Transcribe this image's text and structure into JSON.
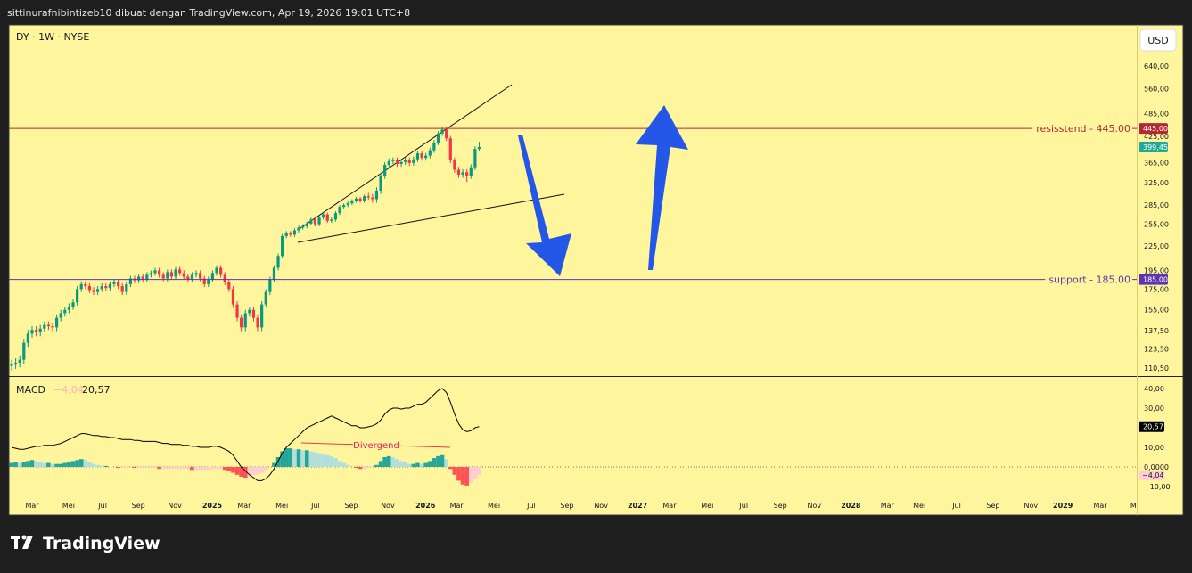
{
  "header": {
    "caption": "sittinurafnibintizeb10 dibuat dengan TradingView.com, Apr 19, 2026 19:01 UTC+8"
  },
  "footer": {
    "brand": "TradingView"
  },
  "currency_button": "USD",
  "chart_data": [
    {
      "type": "candlestick",
      "title": "DY · 1W · NYSE",
      "x": [
        0,
        1,
        2,
        3,
        4,
        5,
        6,
        7,
        8,
        9,
        10,
        11,
        12,
        13,
        14,
        15,
        16,
        17,
        18,
        19,
        20,
        21,
        22,
        23,
        24,
        25,
        26,
        27,
        28,
        29,
        30,
        31,
        32,
        33,
        34,
        35,
        36,
        37,
        38,
        39,
        40,
        41,
        42,
        43,
        44,
        45,
        46,
        47,
        48,
        49,
        50,
        51,
        52,
        53,
        54,
        55,
        56,
        57,
        58,
        59,
        60,
        61,
        62,
        63,
        64,
        65,
        66,
        67,
        68,
        69,
        70,
        71,
        72,
        73,
        74,
        75,
        76,
        77,
        78,
        79,
        80,
        81,
        82,
        83,
        84,
        85,
        86,
        87,
        88,
        89,
        90,
        91,
        92,
        93,
        94,
        95,
        96,
        97,
        98,
        99,
        100,
        101,
        102,
        103,
        104,
        105,
        106,
        107,
        108,
        109,
        110,
        111,
        112,
        113,
        114
      ],
      "open": [
        112,
        113,
        114,
        116,
        128,
        135,
        138,
        136,
        139,
        142,
        141,
        140,
        148,
        152,
        155,
        158,
        162,
        175,
        180,
        178,
        174,
        172,
        175,
        178,
        176,
        180,
        182,
        178,
        172,
        180,
        186,
        184,
        188,
        185,
        190,
        192,
        195,
        190,
        186,
        193,
        188,
        196,
        192,
        188,
        185,
        190,
        192,
        186,
        180,
        185,
        192,
        198,
        190,
        182,
        175,
        160,
        148,
        140,
        152,
        155,
        148,
        140,
        160,
        172,
        185,
        198,
        212,
        238,
        242,
        240,
        246,
        250,
        252,
        256,
        262,
        255,
        265,
        270,
        260,
        262,
        272,
        282,
        285,
        288,
        292,
        296,
        292,
        300,
        298,
        295,
        310,
        338,
        360,
        368,
        370,
        362,
        366,
        370,
        364,
        372,
        385,
        375,
        380,
        392,
        410,
        432,
        442,
        420,
        370,
        350,
        340,
        345,
        338,
        355,
        395
      ],
      "high": [
        116,
        117,
        119,
        131,
        138,
        141,
        141,
        142,
        145,
        145,
        144,
        151,
        155,
        158,
        161,
        165,
        178,
        183,
        183,
        181,
        177,
        178,
        181,
        181,
        183,
        185,
        185,
        181,
        183,
        189,
        189,
        191,
        191,
        193,
        195,
        198,
        198,
        193,
        196,
        196,
        199,
        199,
        195,
        191,
        193,
        195,
        195,
        189,
        188,
        195,
        201,
        201,
        193,
        185,
        178,
        163,
        151,
        155,
        158,
        158,
        151,
        163,
        175,
        188,
        201,
        215,
        241,
        245,
        245,
        249,
        253,
        255,
        259,
        265,
        265,
        268,
        273,
        273,
        265,
        275,
        285,
        288,
        291,
        295,
        299,
        299,
        303,
        306,
        304,
        316,
        344,
        366,
        374,
        376,
        376,
        372,
        376,
        376,
        378,
        391,
        391,
        386,
        398,
        416,
        438,
        450,
        448,
        426,
        376,
        356,
        351,
        351,
        361,
        401,
        412
      ],
      "low": [
        109,
        110,
        111,
        113,
        125,
        132,
        133,
        133,
        136,
        138,
        137,
        137,
        145,
        149,
        152,
        155,
        159,
        172,
        175,
        171,
        169,
        169,
        172,
        173,
        173,
        177,
        175,
        169,
        169,
        177,
        181,
        181,
        182,
        182,
        187,
        189,
        187,
        183,
        183,
        185,
        185,
        189,
        185,
        182,
        182,
        187,
        183,
        177,
        177,
        182,
        189,
        187,
        179,
        172,
        157,
        145,
        137,
        137,
        149,
        145,
        137,
        137,
        157,
        169,
        182,
        195,
        209,
        235,
        237,
        237,
        243,
        247,
        249,
        253,
        252,
        252,
        262,
        257,
        257,
        259,
        269,
        279,
        282,
        285,
        289,
        289,
        289,
        294,
        289,
        289,
        304,
        332,
        354,
        362,
        356,
        356,
        360,
        358,
        358,
        366,
        369,
        369,
        374,
        386,
        404,
        426,
        414,
        364,
        344,
        334,
        334,
        326,
        332,
        349,
        390
      ],
      "close": [
        113,
        114,
        116,
        128,
        135,
        138,
        136,
        139,
        142,
        141,
        140,
        148,
        152,
        155,
        158,
        162,
        175,
        180,
        178,
        174,
        172,
        175,
        178,
        176,
        180,
        182,
        178,
        172,
        180,
        186,
        184,
        188,
        185,
        190,
        192,
        195,
        190,
        186,
        193,
        188,
        196,
        192,
        188,
        185,
        190,
        192,
        186,
        180,
        185,
        192,
        198,
        190,
        182,
        175,
        160,
        148,
        140,
        152,
        155,
        148,
        140,
        160,
        172,
        185,
        198,
        212,
        238,
        242,
        240,
        246,
        250,
        252,
        256,
        262,
        255,
        265,
        270,
        260,
        262,
        272,
        282,
        285,
        288,
        292,
        296,
        292,
        300,
        298,
        295,
        310,
        338,
        360,
        368,
        370,
        362,
        366,
        370,
        364,
        372,
        385,
        375,
        380,
        392,
        410,
        432,
        442,
        420,
        370,
        350,
        340,
        345,
        338,
        355,
        395,
        399.45
      ],
      "up_color": "#089981",
      "down_color": "#f23645",
      "log_scale": true,
      "ylim": [
        105.5,
        812
      ],
      "yticks": [
        {
          "value": 640,
          "label": "640,00"
        },
        {
          "value": 560,
          "label": "560,00"
        },
        {
          "value": 485,
          "label": "485,00"
        },
        {
          "value": 425,
          "label": "425,00"
        },
        {
          "value": 365,
          "label": "365,00"
        },
        {
          "value": 325,
          "label": "325,00"
        },
        {
          "value": 285,
          "label": "285,00"
        },
        {
          "value": 255,
          "label": "255,00"
        },
        {
          "value": 225,
          "label": "225,00"
        },
        {
          "value": 195,
          "label": "195,00"
        },
        {
          "value": 175,
          "label": "175,00"
        },
        {
          "value": 155,
          "label": "155,00"
        },
        {
          "value": 137.5,
          "label": "137,50"
        },
        {
          "value": 123.5,
          "label": "123,50"
        },
        {
          "value": 110.5,
          "label": "110,50"
        }
      ],
      "xlim": [
        -0.65,
        274.3
      ],
      "xticks": [
        {
          "value": 5,
          "label": "Mar"
        },
        {
          "value": 13.9,
          "label": "Mei"
        },
        {
          "value": 22.2,
          "label": "Jul"
        },
        {
          "value": 30.9,
          "label": "Sep"
        },
        {
          "value": 39.8,
          "label": "Nov"
        },
        {
          "value": 48.9,
          "label": "2025"
        },
        {
          "value": 56.7,
          "label": "Mar"
        },
        {
          "value": 65.9,
          "label": "Mei"
        },
        {
          "value": 74.1,
          "label": "Jul"
        },
        {
          "value": 82.8,
          "label": "Sep"
        },
        {
          "value": 91.7,
          "label": "Nov"
        },
        {
          "value": 100.9,
          "label": "2026"
        },
        {
          "value": 108.5,
          "label": "Mar"
        },
        {
          "value": 117.6,
          "label": "Mei"
        },
        {
          "value": 126.7,
          "label": "Jul"
        },
        {
          "value": 135.4,
          "label": "Sep"
        },
        {
          "value": 143.7,
          "label": "Nov"
        },
        {
          "value": 152.6,
          "label": "2027"
        },
        {
          "value": 160.4,
          "label": "Mar"
        },
        {
          "value": 169.6,
          "label": "Mei"
        },
        {
          "value": 178.5,
          "label": "Jul"
        },
        {
          "value": 187.4,
          "label": "Sep"
        },
        {
          "value": 195.7,
          "label": "Nov"
        },
        {
          "value": 204.6,
          "label": "2028"
        },
        {
          "value": 213.5,
          "label": "Mar"
        },
        {
          "value": 221.3,
          "label": "Mei"
        },
        {
          "value": 230.4,
          "label": "Jul"
        },
        {
          "value": 239.3,
          "label": "Sep"
        },
        {
          "value": 248.5,
          "label": "Nov"
        },
        {
          "value": 256.3,
          "label": "2029"
        },
        {
          "value": 265.4,
          "label": "Mar"
        },
        {
          "value": 273.5,
          "label": "M"
        }
      ],
      "last_price_label": "399,45",
      "last_price_color": "#22ab94",
      "hlines": [
        {
          "value": 445,
          "name": "resisstend - 445.00",
          "label": "445,00",
          "color": "#b22833"
        },
        {
          "value": 185,
          "name": "support - 185.00",
          "label": "185,00",
          "color": "#5e35b1"
        }
      ]
    },
    {
      "type": "macd",
      "title": "MACD",
      "macd_line": [
        10,
        9.5,
        9,
        9,
        9.5,
        10,
        10.5,
        10.5,
        11,
        11,
        11,
        11.5,
        12,
        13,
        14,
        15,
        16,
        17,
        17,
        16.5,
        16,
        16,
        15.5,
        15.5,
        15,
        15,
        14.5,
        14,
        14,
        14,
        13.5,
        13.5,
        13,
        13,
        13,
        13,
        12.5,
        12,
        12,
        11.5,
        11.5,
        11.5,
        11,
        11,
        10.5,
        10.5,
        10,
        10,
        10,
        10.5,
        10.5,
        10,
        9,
        8,
        6,
        3,
        0,
        -2,
        -4,
        -5.5,
        -7,
        -7,
        -6,
        -4,
        -1,
        3,
        7,
        10,
        12,
        14,
        16,
        18,
        20,
        21,
        22,
        23,
        24,
        25,
        26,
        25,
        24,
        23,
        22,
        21,
        21,
        20,
        20,
        20.5,
        21,
        22,
        24,
        27,
        29,
        30,
        30,
        29.5,
        30,
        30,
        31,
        32,
        32,
        33,
        35,
        37,
        39,
        40,
        38,
        33,
        27,
        22,
        19,
        18,
        18.5,
        20,
        20.57
      ],
      "histogram": [
        2,
        2.5,
        2,
        2.5,
        3,
        3.5,
        3,
        2.5,
        2,
        2,
        1.5,
        1.5,
        1.5,
        2,
        2.5,
        3,
        3.5,
        4,
        3.5,
        2.5,
        1.5,
        1,
        0.5,
        0.5,
        0,
        0,
        -0.5,
        -0.5,
        -0.5,
        0,
        -0.5,
        -0.5,
        -0.5,
        -0.5,
        -0.5,
        -0.5,
        -1,
        -1,
        -1,
        -1,
        -1,
        -1,
        -1,
        -1,
        -1.5,
        -1.5,
        -1.5,
        -1.5,
        -1.5,
        -1,
        -1,
        -1,
        -1.5,
        -2,
        -3,
        -4,
        -5,
        -5.5,
        -5,
        -4,
        -4,
        -3,
        -2,
        0,
        2,
        5,
        8,
        9.5,
        9.5,
        9,
        9,
        8.5,
        8.5,
        8,
        7.5,
        7,
        6.5,
        6,
        5.5,
        4.5,
        3,
        2,
        1,
        0,
        -0.5,
        -1,
        -1,
        -0.5,
        0,
        1,
        3,
        5,
        5.5,
        5,
        4,
        3,
        2.5,
        1.5,
        1.5,
        2,
        1.5,
        2,
        3,
        4.5,
        5.5,
        6,
        4,
        -1,
        -4,
        -7,
        -9,
        -9.5,
        -8,
        -6,
        -4.04
      ],
      "macd_color": "#000000",
      "hist_colors": {
        "up_rising": "#26a69a",
        "up_falling": "#b2dfdb",
        "down_rising": "#ffcdd2",
        "down_falling": "#ff5252"
      },
      "macd_last_label": "20,57",
      "histogram_last_label": "−4,04",
      "ylim": [
        -14.1,
        45.9
      ],
      "yticks": [
        {
          "value": 40,
          "label": "40,00"
        },
        {
          "value": 30,
          "label": "30,00"
        },
        {
          "value": 10,
          "label": "10,00"
        },
        {
          "value": 0,
          "label": "0,0000"
        },
        {
          "value": -10,
          "label": "−10,00"
        }
      ],
      "annotation": "Divergend"
    }
  ]
}
